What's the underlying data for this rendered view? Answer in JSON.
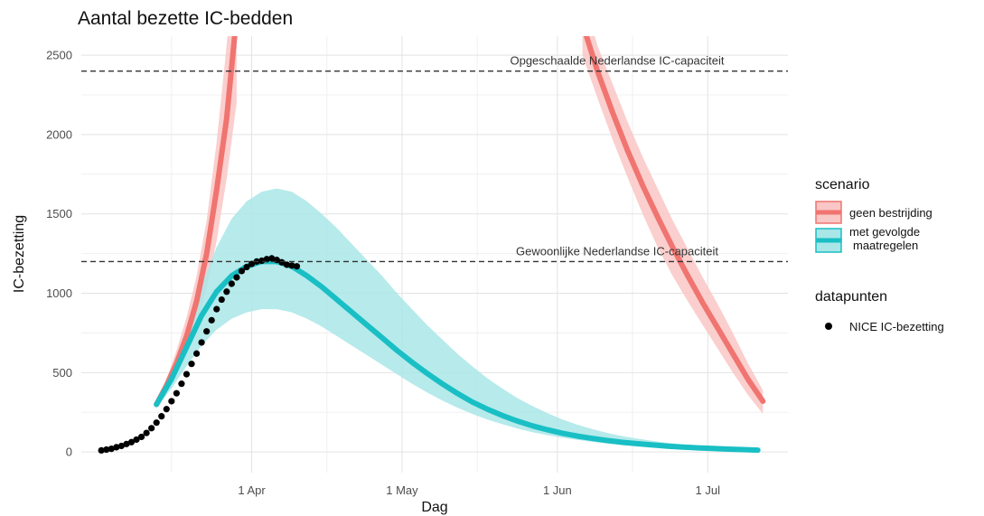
{
  "chart_data": {
    "type": "line",
    "title": "Aantal bezette IC-bedden",
    "xlabel": "Dag",
    "ylabel": "IC-bezetting",
    "x_domain": [
      "2020-03-01",
      "2020-07-14"
    ],
    "xlim": [
      "2020-02-27",
      "2020-07-17"
    ],
    "ylim": [
      -130,
      2620
    ],
    "y_ticks": [
      0,
      500,
      1000,
      1500,
      2000,
      2500
    ],
    "x_ticks": [
      {
        "date": "2020-04-01",
        "label": "1 Apr"
      },
      {
        "date": "2020-05-01",
        "label": "1 May"
      },
      {
        "date": "2020-06-01",
        "label": "1 Jun"
      },
      {
        "date": "2020-07-01",
        "label": "1 Jul"
      }
    ],
    "x_minor_gridlines": [
      "2020-03-16",
      "2020-04-16",
      "2020-05-16",
      "2020-06-16"
    ],
    "grid": true,
    "hlines": [
      {
        "y": 2400,
        "label": "Opgeschaalde Nederlandse IC-capaciteit",
        "style": "dashed"
      },
      {
        "y": 1200,
        "label": "Gewoonlijke Nederlandse IC-capaciteit",
        "style": "dashed"
      }
    ],
    "series": [
      {
        "name": "geen bestrijding",
        "color": "#f07470",
        "band_color": "#f9c7c5",
        "legend_group": "scenario",
        "segments": [
          {
            "dates": [
              "2020-03-13",
              "2020-03-15",
              "2020-03-17",
              "2020-03-19",
              "2020-03-21",
              "2020-03-23",
              "2020-03-25",
              "2020-03-27",
              "2020-03-29"
            ],
            "mean": [
              300,
              420,
              560,
              730,
              950,
              1250,
              1650,
              2100,
              2750
            ],
            "lower": [
              290,
              380,
              490,
              630,
              800,
              1030,
              1330,
              1720,
              2200
            ],
            "upper": [
              310,
              460,
              640,
              850,
              1110,
              1460,
              1950,
              2560,
              3400
            ]
          },
          {
            "dates": [
              "2020-06-06",
              "2020-06-09",
              "2020-06-12",
              "2020-06-15",
              "2020-06-18",
              "2020-06-21",
              "2020-06-24",
              "2020-06-27",
              "2020-06-30",
              "2020-07-03",
              "2020-07-06",
              "2020-07-09",
              "2020-07-12"
            ],
            "mean": [
              2700,
              2400,
              2140,
              1900,
              1680,
              1480,
              1290,
              1110,
              940,
              780,
              620,
              460,
              320
            ],
            "lower": [
              2500,
              2230,
              1970,
              1730,
              1500,
              1290,
              1110,
              950,
              800,
              650,
              500,
              360,
              240
            ],
            "upper": [
              2900,
              2560,
              2320,
              2080,
              1860,
              1660,
              1460,
              1280,
              1100,
              930,
              750,
              560,
              390
            ]
          }
        ]
      },
      {
        "name": "met gevolgde maatregelen",
        "legend_lines": [
          "met gevolgde",
          "maatregelen"
        ],
        "color": "#19bfc4",
        "band_color": "#a9e6e8",
        "legend_group": "scenario",
        "dates": [
          "2020-03-13",
          "2020-03-16",
          "2020-03-19",
          "2020-03-22",
          "2020-03-25",
          "2020-03-28",
          "2020-03-31",
          "2020-04-03",
          "2020-04-06",
          "2020-04-09",
          "2020-04-12",
          "2020-04-15",
          "2020-04-18",
          "2020-04-21",
          "2020-04-24",
          "2020-04-27",
          "2020-04-30",
          "2020-05-03",
          "2020-05-06",
          "2020-05-09",
          "2020-05-12",
          "2020-05-15",
          "2020-05-18",
          "2020-05-21",
          "2020-05-24",
          "2020-05-27",
          "2020-05-30",
          "2020-06-02",
          "2020-06-05",
          "2020-06-08",
          "2020-06-11",
          "2020-06-14",
          "2020-06-17",
          "2020-06-20",
          "2020-06-23",
          "2020-06-26",
          "2020-06-29",
          "2020-07-02",
          "2020-07-05",
          "2020-07-08",
          "2020-07-11"
        ],
        "mean": [
          300,
          460,
          660,
          860,
          1010,
          1110,
          1170,
          1200,
          1200,
          1170,
          1110,
          1040,
          960,
          880,
          800,
          720,
          640,
          565,
          495,
          430,
          370,
          315,
          270,
          230,
          195,
          165,
          140,
          118,
          100,
          85,
          72,
          61,
          52,
          44,
          37,
          31,
          26,
          22,
          18,
          15,
          12
        ],
        "lower": [
          280,
          400,
          540,
          670,
          770,
          840,
          880,
          900,
          900,
          880,
          840,
          790,
          730,
          670,
          610,
          550,
          490,
          430,
          375,
          325,
          280,
          240,
          205,
          175,
          148,
          125,
          106,
          90,
          76,
          64,
          54,
          46,
          39,
          33,
          28,
          23,
          19,
          16,
          13,
          11,
          9
        ],
        "upper": [
          320,
          520,
          780,
          1050,
          1290,
          1470,
          1580,
          1640,
          1660,
          1640,
          1580,
          1500,
          1410,
          1310,
          1210,
          1110,
          1000,
          900,
          800,
          710,
          620,
          540,
          465,
          400,
          340,
          290,
          245,
          205,
          172,
          144,
          120,
          100,
          84,
          70,
          58,
          48,
          40,
          33,
          27,
          22,
          18
        ]
      },
      {
        "name": "NICE IC-bezetting",
        "color": "#000000",
        "legend_group": "datapunten",
        "type": "scatter",
        "dates": [
          "2020-03-02",
          "2020-03-03",
          "2020-03-04",
          "2020-03-05",
          "2020-03-06",
          "2020-03-07",
          "2020-03-08",
          "2020-03-09",
          "2020-03-10",
          "2020-03-11",
          "2020-03-12",
          "2020-03-13",
          "2020-03-14",
          "2020-03-15",
          "2020-03-16",
          "2020-03-17",
          "2020-03-18",
          "2020-03-19",
          "2020-03-20",
          "2020-03-21",
          "2020-03-22",
          "2020-03-23",
          "2020-03-24",
          "2020-03-25",
          "2020-03-26",
          "2020-03-27",
          "2020-03-28",
          "2020-03-29",
          "2020-03-30",
          "2020-03-31",
          "2020-04-01",
          "2020-04-02",
          "2020-04-03",
          "2020-04-04",
          "2020-04-05",
          "2020-04-06",
          "2020-04-07",
          "2020-04-08",
          "2020-04-09",
          "2020-04-10"
        ],
        "values": [
          10,
          15,
          20,
          30,
          38,
          50,
          62,
          78,
          95,
          120,
          150,
          185,
          225,
          270,
          320,
          370,
          430,
          490,
          555,
          620,
          690,
          760,
          830,
          900,
          960,
          1010,
          1060,
          1100,
          1140,
          1165,
          1185,
          1200,
          1205,
          1215,
          1220,
          1210,
          1195,
          1180,
          1175,
          1170
        ]
      }
    ],
    "legend": {
      "placement": "right",
      "groups": [
        {
          "title": "scenario"
        },
        {
          "title": "datapunten"
        }
      ]
    }
  }
}
